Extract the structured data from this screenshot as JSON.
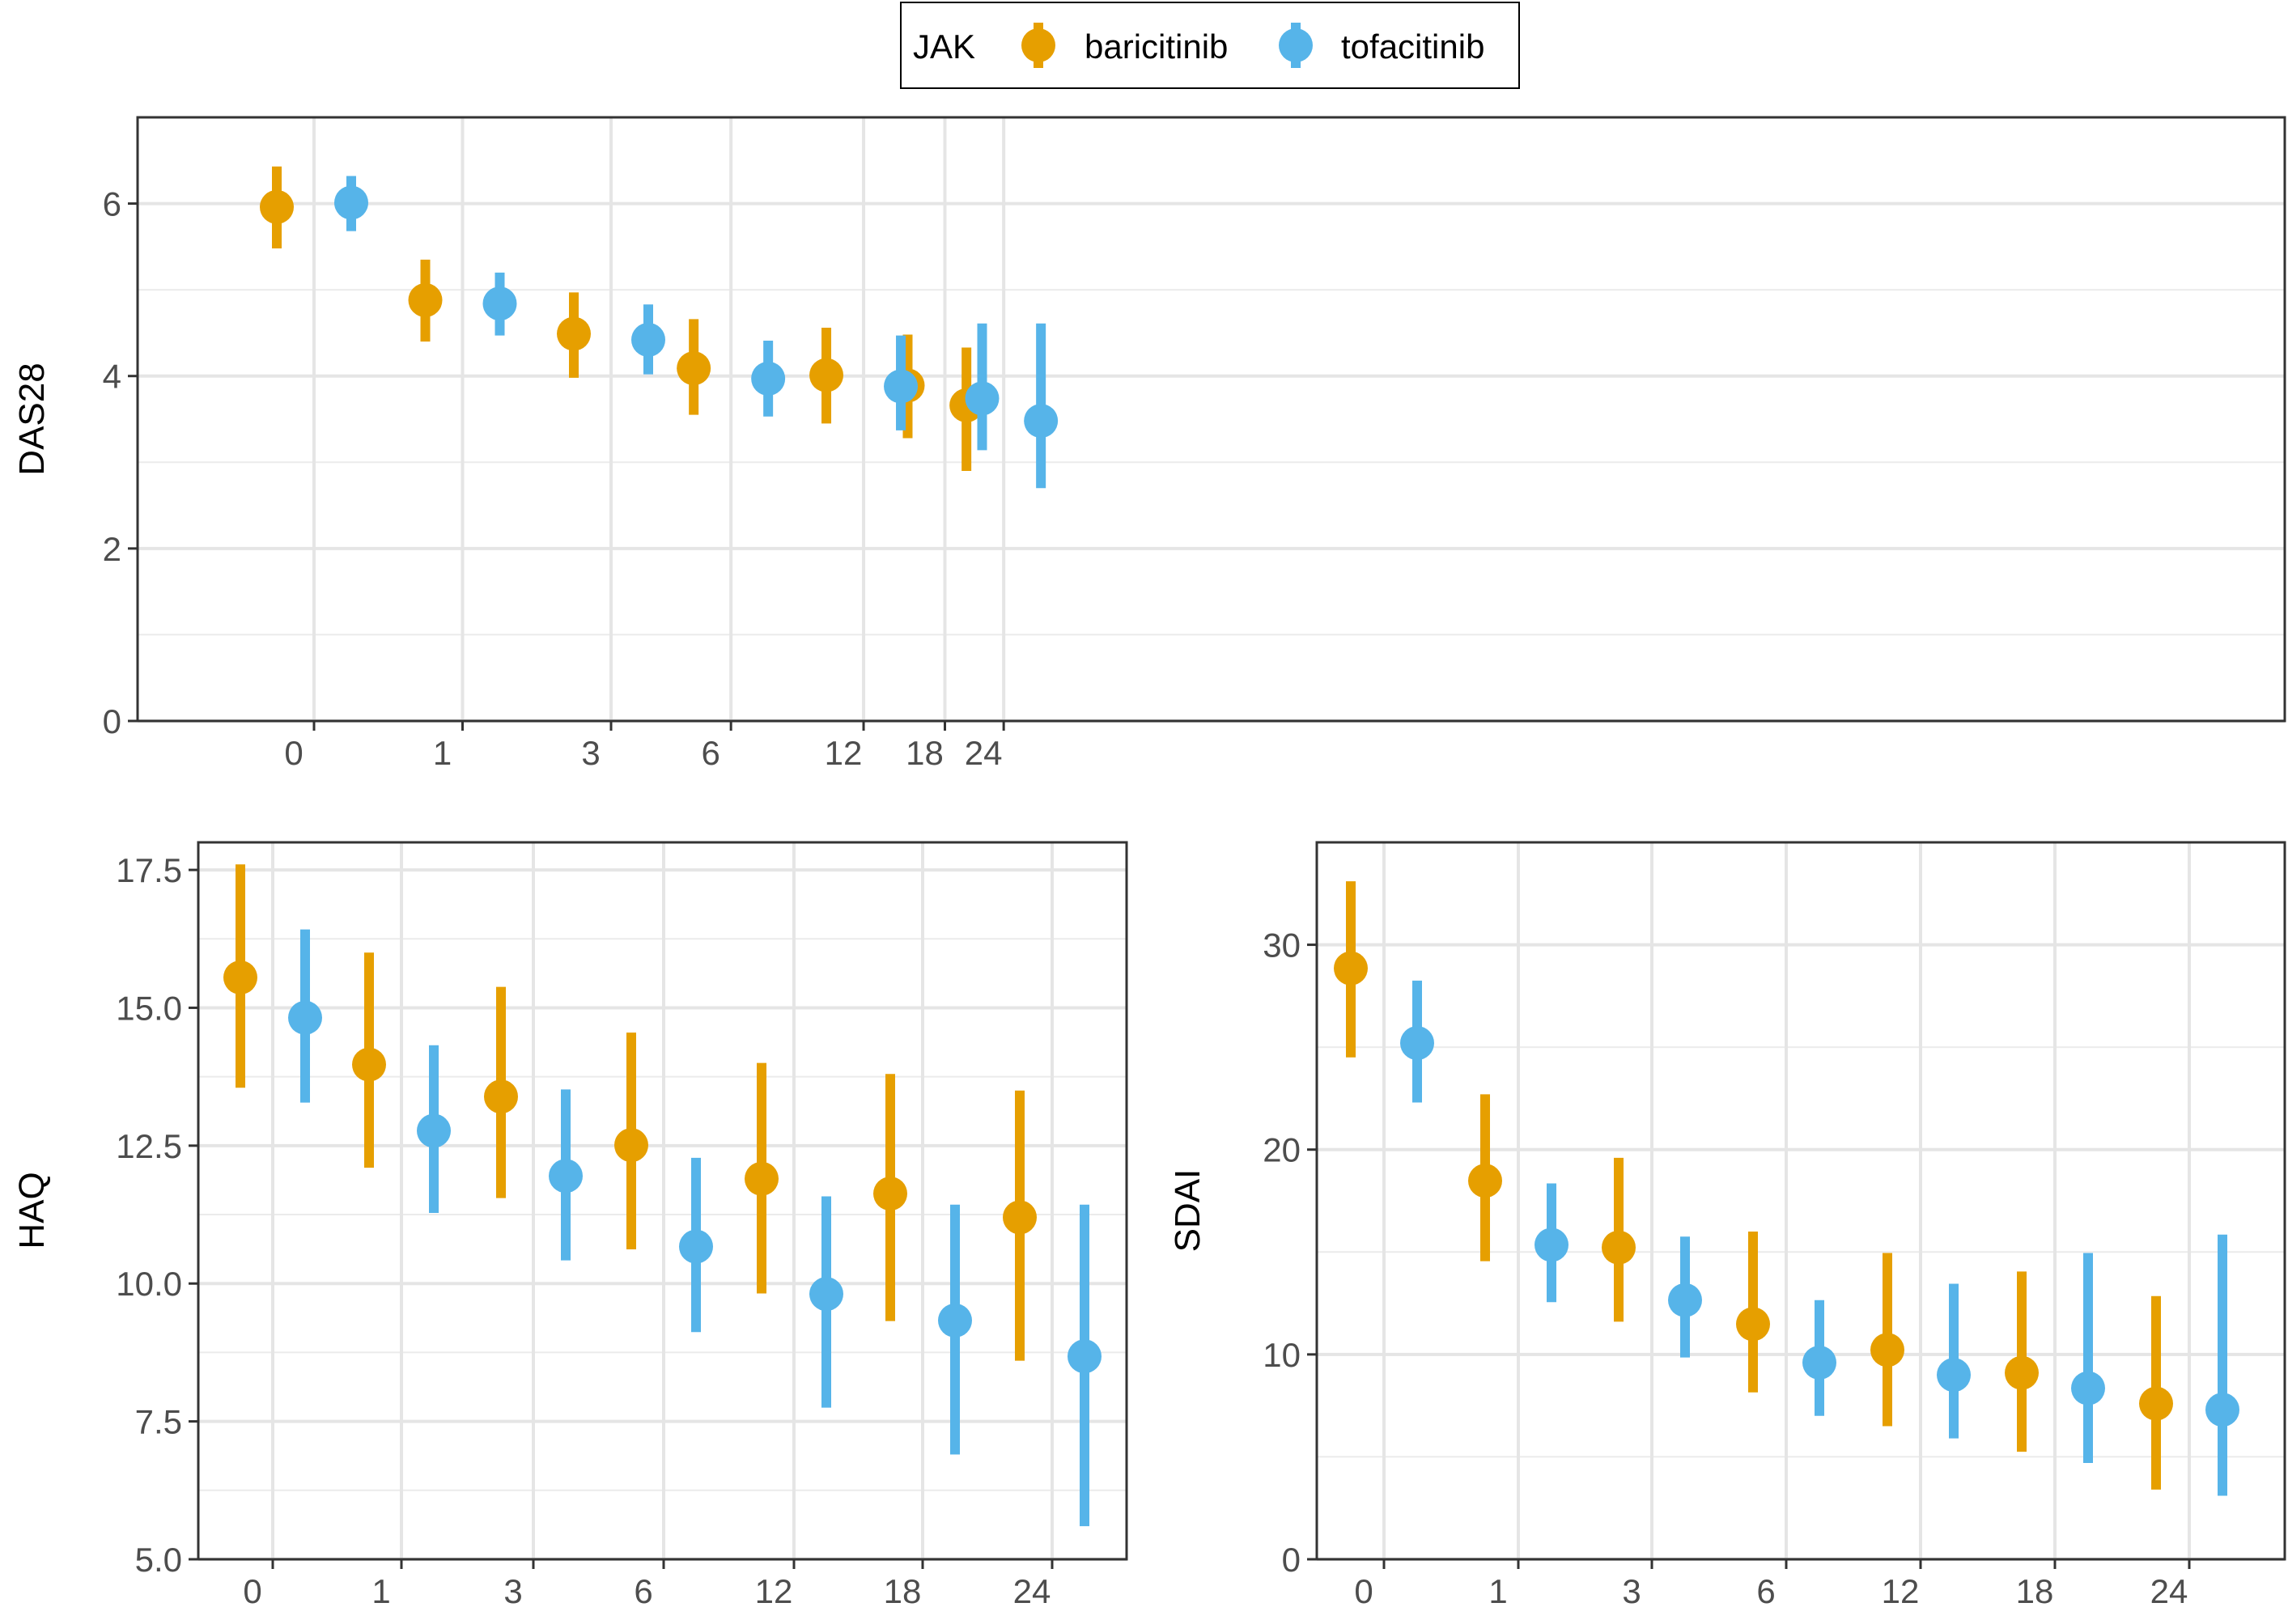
{
  "legend": {
    "title": "JAK",
    "entries": [
      {
        "label": "baricitinib",
        "color": "#E69F00"
      },
      {
        "label": "tofacitinib",
        "color": "#56B4E9"
      }
    ]
  },
  "chart_data": [
    {
      "type": "point-range",
      "ylabel": "DAS28",
      "xlabel": "",
      "categories": [
        "0",
        "1",
        "3",
        "6",
        "12",
        "18",
        "24"
      ],
      "x_tick_positions": [
        0,
        1,
        3,
        6,
        12,
        18,
        24
      ],
      "ylim": [
        0,
        7
      ],
      "yticks": [
        "0",
        "2",
        "4",
        "6"
      ],
      "grid": true,
      "series": [
        {
          "name": "baricitinib",
          "color": "#E69F00",
          "points": [
            {
              "x": 0,
              "y": 5.96,
              "lo": 5.48,
              "hi": 6.43
            },
            {
              "x": 1,
              "y": 4.88,
              "lo": 4.4,
              "hi": 5.35
            },
            {
              "x": 3,
              "y": 4.49,
              "lo": 3.98,
              "hi": 4.97
            },
            {
              "x": 6,
              "y": 4.09,
              "lo": 3.55,
              "hi": 4.66
            },
            {
              "x": 12,
              "y": 4.01,
              "lo": 3.45,
              "hi": 4.56
            },
            {
              "x": 18,
              "y": 3.89,
              "lo": 3.28,
              "hi": 4.48
            },
            {
              "x": 24,
              "y": 3.66,
              "lo": 2.9,
              "hi": 4.33
            }
          ]
        },
        {
          "name": "tofacitinib",
          "color": "#56B4E9",
          "points": [
            {
              "x": 0,
              "y": 6.01,
              "lo": 5.68,
              "hi": 6.32
            },
            {
              "x": 1,
              "y": 4.84,
              "lo": 4.47,
              "hi": 5.2
            },
            {
              "x": 3,
              "y": 4.42,
              "lo": 4.02,
              "hi": 4.83
            },
            {
              "x": 6,
              "y": 3.97,
              "lo": 3.53,
              "hi": 4.41
            },
            {
              "x": 12,
              "y": 3.88,
              "lo": 3.37,
              "hi": 4.47
            },
            {
              "x": 18,
              "y": 3.74,
              "lo": 3.14,
              "hi": 4.61
            },
            {
              "x": 24,
              "y": 3.48,
              "lo": 2.7,
              "hi": 4.61
            }
          ]
        }
      ]
    },
    {
      "type": "point-range",
      "ylabel": "HAQ",
      "xlabel": "",
      "categories": [
        "0",
        "1",
        "3",
        "6",
        "12",
        "18",
        "24"
      ],
      "ylim": [
        5.0,
        18.0
      ],
      "yticks": [
        "5.0",
        "7.5",
        "10.0",
        "12.5",
        "15.0",
        "17.5"
      ],
      "grid": true,
      "series": [
        {
          "name": "baricitinib",
          "color": "#E69F00",
          "points": [
            {
              "x": "0",
              "y": 15.55,
              "lo": 13.55,
              "hi": 17.6
            },
            {
              "x": "1",
              "y": 13.97,
              "lo": 12.1,
              "hi": 16.0
            },
            {
              "x": "3",
              "y": 13.39,
              "lo": 11.55,
              "hi": 15.38
            },
            {
              "x": "6",
              "y": 12.51,
              "lo": 10.62,
              "hi": 14.55
            },
            {
              "x": "12",
              "y": 11.9,
              "lo": 9.82,
              "hi": 14.0
            },
            {
              "x": "18",
              "y": 11.63,
              "lo": 9.32,
              "hi": 13.8
            },
            {
              "x": "24",
              "y": 11.2,
              "lo": 8.6,
              "hi": 13.5
            }
          ]
        },
        {
          "name": "tofacitinib",
          "color": "#56B4E9",
          "points": [
            {
              "x": "0",
              "y": 14.82,
              "lo": 13.28,
              "hi": 16.42
            },
            {
              "x": "1",
              "y": 12.77,
              "lo": 11.28,
              "hi": 14.32
            },
            {
              "x": "3",
              "y": 11.95,
              "lo": 10.42,
              "hi": 13.52
            },
            {
              "x": "6",
              "y": 10.67,
              "lo": 9.12,
              "hi": 12.28
            },
            {
              "x": "12",
              "y": 9.81,
              "lo": 7.75,
              "hi": 11.58
            },
            {
              "x": "18",
              "y": 9.33,
              "lo": 6.9,
              "hi": 11.43
            },
            {
              "x": "24",
              "y": 8.68,
              "lo": 5.6,
              "hi": 11.43
            }
          ]
        }
      ]
    },
    {
      "type": "point-range",
      "ylabel": "SDAI",
      "xlabel": "",
      "categories": [
        "0",
        "1",
        "3",
        "6",
        "12",
        "18",
        "24"
      ],
      "ylim": [
        0,
        35
      ],
      "yticks": [
        "0",
        "10",
        "20",
        "30"
      ],
      "grid": true,
      "series": [
        {
          "name": "baricitinib",
          "color": "#E69F00",
          "points": [
            {
              "x": "0",
              "y": 28.85,
              "lo": 24.5,
              "hi": 33.1
            },
            {
              "x": "1",
              "y": 18.48,
              "lo": 14.55,
              "hi": 22.7
            },
            {
              "x": "3",
              "y": 15.22,
              "lo": 11.6,
              "hi": 19.6
            },
            {
              "x": "6",
              "y": 11.48,
              "lo": 8.15,
              "hi": 16.0
            },
            {
              "x": "12",
              "y": 10.22,
              "lo": 6.5,
              "hi": 14.95
            },
            {
              "x": "18",
              "y": 9.1,
              "lo": 5.25,
              "hi": 14.05
            },
            {
              "x": "24",
              "y": 7.6,
              "lo": 3.4,
              "hi": 12.85
            }
          ]
        },
        {
          "name": "tofacitinib",
          "color": "#56B4E9",
          "points": [
            {
              "x": "0",
              "y": 25.2,
              "lo": 22.3,
              "hi": 28.25
            },
            {
              "x": "1",
              "y": 15.35,
              "lo": 12.55,
              "hi": 18.35
            },
            {
              "x": "3",
              "y": 12.65,
              "lo": 9.85,
              "hi": 15.75
            },
            {
              "x": "6",
              "y": 9.6,
              "lo": 7.0,
              "hi": 12.65
            },
            {
              "x": "12",
              "y": 9.0,
              "lo": 5.9,
              "hi": 13.45
            },
            {
              "x": "18",
              "y": 8.35,
              "lo": 4.7,
              "hi": 14.95
            },
            {
              "x": "24",
              "y": 7.3,
              "lo": 3.1,
              "hi": 15.85
            }
          ]
        }
      ]
    }
  ]
}
